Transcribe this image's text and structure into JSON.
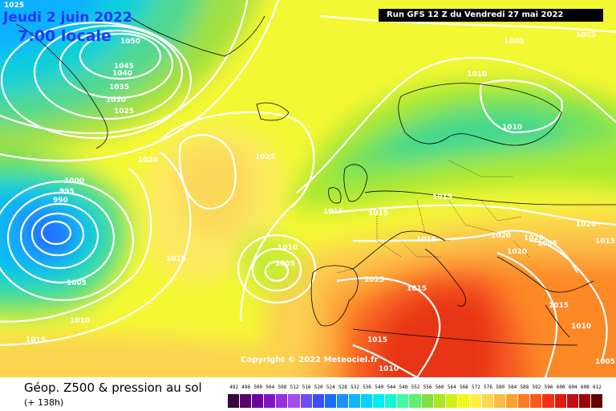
{
  "header": {
    "date": "Jeudi 2 juin 2022",
    "time": "7:00 locale",
    "run": "Run GFS 12 Z du Vendredi 27 mai 2022"
  },
  "copyright": "Copyright © 2022 Meteociel.fr",
  "footer": {
    "title": "Géop. Z500 & pression au sol",
    "forecast_hour": "(+ 138h)"
  },
  "scale": {
    "labels": [
      "492",
      "496",
      "500",
      "504",
      "508",
      "512",
      "516",
      "520",
      "524",
      "528",
      "532",
      "536",
      "540",
      "544",
      "548",
      "552",
      "556",
      "560",
      "564",
      "568",
      "572",
      "576",
      "580",
      "584",
      "588",
      "592",
      "596",
      "600",
      "604",
      "608",
      "612"
    ],
    "colors": [
      "#3a003f",
      "#58006c",
      "#6f009a",
      "#8414c8",
      "#9630e0",
      "#a24cf2",
      "#6a4ef6",
      "#3a4cfc",
      "#1a6cff",
      "#1a90ff",
      "#10b4ff",
      "#00d4ff",
      "#00ecf4",
      "#10f8d0",
      "#40fca0",
      "#60f070",
      "#80e040",
      "#a8e820",
      "#d0f010",
      "#f0f818",
      "#fff040",
      "#fcd850",
      "#fcbc40",
      "#fca030",
      "#fc7c20",
      "#fc5818",
      "#f43010",
      "#e41810",
      "#c80c10",
      "#9c0408",
      "#600000"
    ]
  },
  "isobars": [
    {
      "label": "1025"
    },
    {
      "label": "1050"
    },
    {
      "label": "1045"
    },
    {
      "label": "1040"
    },
    {
      "label": "1035"
    },
    {
      "label": "1030"
    },
    {
      "label": "1025"
    },
    {
      "label": "1020"
    },
    {
      "label": "1025"
    },
    {
      "label": "1020"
    },
    {
      "label": "1010"
    },
    {
      "label": "1025"
    },
    {
      "label": "1010"
    },
    {
      "label": "1000"
    },
    {
      "label": "995"
    },
    {
      "label": "990"
    },
    {
      "label": "1015"
    },
    {
      "label": "1015"
    },
    {
      "label": "1005"
    },
    {
      "label": "1010"
    },
    {
      "label": "1005"
    },
    {
      "label": "1015"
    },
    {
      "label": "1015"
    },
    {
      "label": "1015"
    },
    {
      "label": "1015"
    },
    {
      "label": "1020"
    },
    {
      "label": "1020"
    },
    {
      "label": "1020"
    },
    {
      "label": "1020"
    },
    {
      "label": "1015"
    },
    {
      "label": "1005"
    },
    {
      "label": "1010"
    },
    {
      "label": "1015"
    },
    {
      "label": "1010"
    },
    {
      "label": "1005"
    },
    {
      "label": "1015"
    },
    {
      "label": "1015"
    },
    {
      "label": "1010"
    },
    {
      "label": "1015"
    }
  ]
}
